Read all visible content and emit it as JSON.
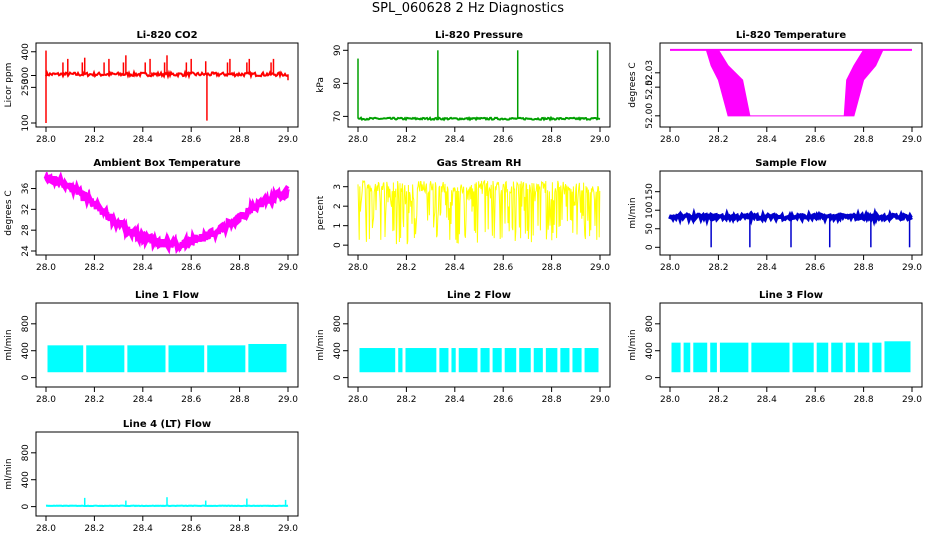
{
  "page": {
    "title": "SPL_060628  2 Hz Diagnostics"
  },
  "chart_data": [
    {
      "id": "co2",
      "type": "line",
      "title": "Li-820 CO2",
      "ylabel": "Licor ppm",
      "color": "#ff0000",
      "xlim": [
        28.0,
        29.0
      ],
      "ylim": [
        100,
        420
      ],
      "xticks": [
        "28.0",
        "28.2",
        "28.4",
        "28.6",
        "28.8",
        "29.0"
      ],
      "yticks": [
        100,
        250,
        300,
        400
      ],
      "series": [
        {
          "baseline": 305,
          "band": 8,
          "spikes": [
            [
              28.0,
              100
            ],
            [
              28.0,
              405
            ],
            [
              28.07,
              355
            ],
            [
              28.09,
              370
            ],
            [
              28.15,
              355
            ],
            [
              28.16,
              375
            ],
            [
              28.24,
              355
            ],
            [
              28.26,
              370
            ],
            [
              28.32,
              355
            ],
            [
              28.33,
              385
            ],
            [
              28.41,
              355
            ],
            [
              28.43,
              370
            ],
            [
              28.49,
              355
            ],
            [
              28.5,
              385
            ],
            [
              28.58,
              355
            ],
            [
              28.6,
              370
            ],
            [
              28.66,
              360
            ],
            [
              28.665,
              110
            ],
            [
              28.75,
              355
            ],
            [
              28.76,
              370
            ],
            [
              28.83,
              355
            ],
            [
              28.84,
              370
            ],
            [
              28.93,
              355
            ],
            [
              28.94,
              370
            ],
            [
              29.0,
              280
            ]
          ]
        }
      ]
    },
    {
      "id": "pressure",
      "type": "line",
      "title": "Li-820 Pressure",
      "ylabel": "kPa",
      "color": "#00a000",
      "xlim": [
        28.0,
        29.0
      ],
      "ylim": [
        68,
        91
      ],
      "xticks": [
        "28.0",
        "28.2",
        "28.4",
        "28.6",
        "28.8",
        "29.0"
      ],
      "yticks": [
        70,
        80,
        90
      ],
      "series": [
        {
          "baseline": 69.3,
          "band": 0.3,
          "spikes": [
            [
              28.0,
              87.5
            ],
            [
              28.33,
              90
            ],
            [
              28.66,
              90
            ],
            [
              28.99,
              90
            ]
          ]
        }
      ]
    },
    {
      "id": "licor-temp",
      "type": "area",
      "title": "Li-820 Temperature",
      "ylabel": "degrees C",
      "color": "#ff00ff",
      "xlim": [
        28.0,
        29.0
      ],
      "ylim": [
        51.995,
        52.048
      ],
      "xticks": [
        "28.0",
        "28.2",
        "28.4",
        "28.6",
        "28.8",
        "29.0"
      ],
      "yticks": [
        52.0,
        52.02,
        52.03
      ],
      "ytick_labels": [
        "52.00",
        "52.02",
        "52.03"
      ],
      "series": [
        {
          "profile": [
            [
              28.0,
              52.046,
              52.046
            ],
            [
              28.15,
              52.046,
              52.046
            ],
            [
              28.17,
              52.035,
              52.046
            ],
            [
              28.2,
              52.025,
              52.046
            ],
            [
              28.24,
              52.0,
              52.035
            ],
            [
              28.3,
              52.0,
              52.025
            ],
            [
              28.33,
              52.0,
              52.0
            ],
            [
              28.72,
              52.0,
              52.0
            ],
            [
              28.73,
              52.0,
              52.025
            ],
            [
              28.76,
              52.0,
              52.035
            ],
            [
              28.8,
              52.025,
              52.046
            ],
            [
              28.85,
              52.035,
              52.046
            ],
            [
              28.88,
              52.046,
              52.046
            ],
            [
              29.0,
              52.046,
              52.046
            ]
          ]
        }
      ]
    },
    {
      "id": "box-temp",
      "type": "line",
      "title": "Ambient Box Temperature",
      "ylabel": "degrees C",
      "color": "#ff00ff",
      "xlim": [
        28.0,
        29.0
      ],
      "ylim": [
        24,
        38.6
      ],
      "xticks": [
        "28.0",
        "28.2",
        "28.4",
        "28.6",
        "28.8",
        "29.0"
      ],
      "yticks": [
        24,
        28,
        32,
        36
      ],
      "series": [
        {
          "points": [
            [
              28.0,
              37.8
            ],
            [
              28.05,
              37.6
            ],
            [
              28.1,
              36.5
            ],
            [
              28.15,
              34.8
            ],
            [
              28.2,
              33.0
            ],
            [
              28.25,
              31.0
            ],
            [
              28.3,
              29.2
            ],
            [
              28.35,
              27.8
            ],
            [
              28.4,
              26.7
            ],
            [
              28.45,
              25.8
            ],
            [
              28.5,
              25.4
            ],
            [
              28.55,
              25.3
            ],
            [
              28.6,
              25.7
            ],
            [
              28.65,
              26.6
            ],
            [
              28.7,
              27.7
            ],
            [
              28.75,
              29.0
            ],
            [
              28.8,
              30.5
            ],
            [
              28.85,
              32.0
            ],
            [
              28.9,
              33.5
            ],
            [
              28.95,
              34.6
            ],
            [
              29.0,
              35.3
            ]
          ],
          "band": 0.7
        }
      ]
    },
    {
      "id": "rh",
      "type": "area",
      "title": "Gas Stream RH",
      "ylabel": "percent",
      "color": "#ffff00",
      "xlim": [
        28.0,
        29.0
      ],
      "ylim": [
        -0.3,
        3.6
      ],
      "xticks": [
        "28.0",
        "28.2",
        "28.4",
        "28.6",
        "28.8",
        "29.0"
      ],
      "yticks": [
        0,
        1,
        2,
        3
      ],
      "series": [
        {
          "low": 0.05,
          "high": 3.3,
          "noise": true
        }
      ]
    },
    {
      "id": "sample-flow",
      "type": "line",
      "title": "Sample Flow",
      "ylabel": "ml/min",
      "color": "#0000cc",
      "xlim": [
        28.0,
        29.0
      ],
      "ylim": [
        -10,
        195
      ],
      "xticks": [
        "28.0",
        "28.2",
        "28.4",
        "28.6",
        "28.8",
        "29.0"
      ],
      "yticks": [
        0,
        50,
        100,
        150
      ],
      "series": [
        {
          "baseline": 82,
          "band": 6,
          "spikes": [
            [
              28.17,
              0
            ],
            [
              28.33,
              0
            ],
            [
              28.5,
              0
            ],
            [
              28.66,
              0
            ],
            [
              28.83,
              0
            ],
            [
              28.99,
              0
            ]
          ]
        }
      ]
    },
    {
      "id": "line1",
      "type": "area",
      "title": "Line 1 Flow",
      "ylabel": "ml/min",
      "color": "#00ffff",
      "xlim": [
        28.0,
        29.0
      ],
      "ylim": [
        -80,
        1050
      ],
      "xticks": [
        "28.0",
        "28.2",
        "28.4",
        "28.6",
        "28.8",
        "29.0"
      ],
      "yticks": [
        0,
        400,
        800
      ],
      "series": [
        {
          "low": 80,
          "high": 480,
          "gaps": [
            28.16,
            28.33,
            28.5,
            28.66,
            28.83
          ],
          "endHigh": 500
        }
      ]
    },
    {
      "id": "line2",
      "type": "area",
      "title": "Line 2 Flow",
      "ylabel": "ml/min",
      "color": "#00ffff",
      "xlim": [
        28.0,
        29.0
      ],
      "ylim": [
        -80,
        1050
      ],
      "xticks": [
        "28.0",
        "28.2",
        "28.4",
        "28.6",
        "28.8",
        "29.0"
      ],
      "yticks": [
        0,
        400,
        800
      ],
      "series": [
        {
          "low": 80,
          "high": 440,
          "gaps": [
            28.16,
            28.19,
            28.33,
            28.38,
            28.41,
            28.5,
            28.55,
            28.6,
            28.66,
            28.72,
            28.77,
            28.83,
            28.88,
            28.93
          ],
          "endHigh": 440
        }
      ]
    },
    {
      "id": "line3",
      "type": "area",
      "title": "Line 3 Flow",
      "ylabel": "ml/min",
      "color": "#00ffff",
      "xlim": [
        28.0,
        29.0
      ],
      "ylim": [
        -80,
        1050
      ],
      "xticks": [
        "28.0",
        "28.2",
        "28.4",
        "28.6",
        "28.8",
        "29.0"
      ],
      "yticks": [
        0,
        400,
        800
      ],
      "series": [
        {
          "low": 80,
          "high": 520,
          "gaps": [
            28.05,
            28.09,
            28.16,
            28.2,
            28.33,
            28.5,
            28.6,
            28.66,
            28.72,
            28.77,
            28.83,
            28.88
          ],
          "endHigh": 540
        }
      ]
    },
    {
      "id": "line4",
      "type": "line",
      "title": "Line 4 (LT) Flow",
      "ylabel": "ml/min",
      "color": "#00ffff",
      "xlim": [
        28.0,
        29.0
      ],
      "ylim": [
        -80,
        1050
      ],
      "xticks": [
        "28.0",
        "28.2",
        "28.4",
        "28.6",
        "28.8",
        "29.0"
      ],
      "yticks": [
        0,
        400,
        800
      ],
      "series": [
        {
          "baseline": 12,
          "band": 3,
          "spikes": [
            [
              28.16,
              130
            ],
            [
              28.33,
              90
            ],
            [
              28.5,
              140
            ],
            [
              28.66,
              90
            ],
            [
              28.83,
              120
            ],
            [
              28.99,
              100
            ]
          ]
        }
      ]
    }
  ]
}
